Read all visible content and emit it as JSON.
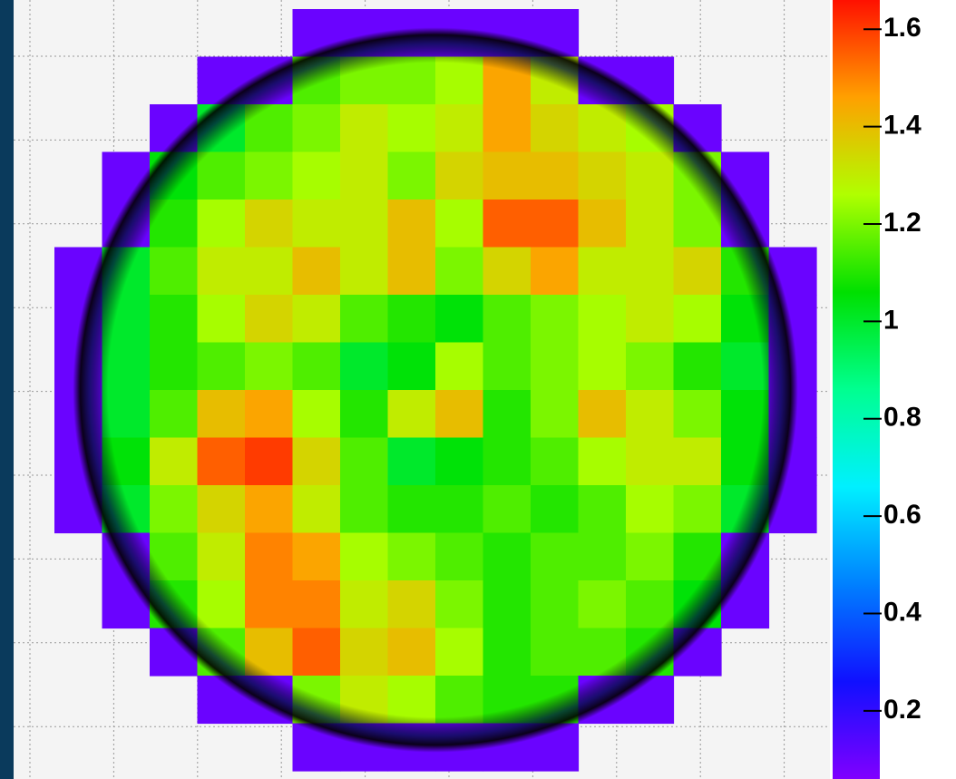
{
  "chart_data": {
    "type": "heatmap",
    "z": [
      [
        null,
        null,
        null,
        null,
        null,
        0.1,
        0.1,
        0.1,
        0.1,
        0.1,
        0.1,
        null,
        null,
        null,
        null,
        null
      ],
      [
        null,
        null,
        null,
        0.1,
        0.1,
        1.15,
        1.2,
        1.2,
        1.25,
        1.45,
        1.3,
        0.1,
        0.1,
        null,
        null,
        null
      ],
      [
        null,
        null,
        0.1,
        1.0,
        1.15,
        1.2,
        1.3,
        1.25,
        1.3,
        1.45,
        1.35,
        1.3,
        1.25,
        0.1,
        null,
        null
      ],
      [
        null,
        0.1,
        1.05,
        1.15,
        1.2,
        1.25,
        1.3,
        1.2,
        1.35,
        1.4,
        1.4,
        1.35,
        1.3,
        1.2,
        0.1,
        null
      ],
      [
        null,
        0.1,
        1.1,
        1.25,
        1.35,
        1.3,
        1.3,
        1.4,
        1.25,
        1.55,
        1.55,
        1.4,
        1.3,
        1.2,
        0.1,
        null
      ],
      [
        0.1,
        1.0,
        1.15,
        1.3,
        1.3,
        1.4,
        1.3,
        1.4,
        1.2,
        1.35,
        1.45,
        1.3,
        1.3,
        1.35,
        1.1,
        0.1
      ],
      [
        0.1,
        1.0,
        1.1,
        1.25,
        1.35,
        1.3,
        1.15,
        1.1,
        1.05,
        1.15,
        1.2,
        1.25,
        1.3,
        1.25,
        1.05,
        0.1
      ],
      [
        0.1,
        1.0,
        1.1,
        1.15,
        1.2,
        1.15,
        1.0,
        1.05,
        1.25,
        1.15,
        1.2,
        1.25,
        1.2,
        1.1,
        1.0,
        0.1
      ],
      [
        0.1,
        1.0,
        1.15,
        1.4,
        1.45,
        1.25,
        1.1,
        1.3,
        1.4,
        1.1,
        1.2,
        1.4,
        1.3,
        1.2,
        1.05,
        0.1
      ],
      [
        0.1,
        1.05,
        1.3,
        1.55,
        1.6,
        1.35,
        1.15,
        1.0,
        1.05,
        1.1,
        1.15,
        1.25,
        1.3,
        1.3,
        1.05,
        0.1
      ],
      [
        0.1,
        1.0,
        1.2,
        1.35,
        1.45,
        1.3,
        1.15,
        1.1,
        1.1,
        1.15,
        1.1,
        1.15,
        1.25,
        1.2,
        1.0,
        0.1
      ],
      [
        null,
        0.1,
        1.15,
        1.3,
        1.5,
        1.45,
        1.25,
        1.2,
        1.15,
        1.1,
        1.15,
        1.15,
        1.2,
        1.1,
        0.1,
        null
      ],
      [
        null,
        0.1,
        1.1,
        1.25,
        1.5,
        1.5,
        1.3,
        1.35,
        1.2,
        1.1,
        1.15,
        1.2,
        1.15,
        1.05,
        0.1,
        null
      ],
      [
        null,
        null,
        0.1,
        1.15,
        1.4,
        1.55,
        1.35,
        1.4,
        1.25,
        1.1,
        1.15,
        1.15,
        1.1,
        0.1,
        null,
        null
      ],
      [
        null,
        null,
        null,
        0.1,
        0.1,
        1.2,
        1.3,
        1.25,
        1.15,
        1.1,
        1.1,
        0.1,
        0.1,
        null,
        null,
        null
      ],
      [
        null,
        null,
        null,
        null,
        null,
        0.1,
        0.1,
        0.1,
        0.1,
        0.1,
        0.1,
        null,
        null,
        null,
        null,
        null
      ]
    ],
    "zlim": [
      0.06,
      1.66
    ],
    "zticks": [
      0.2,
      0.4,
      0.6,
      0.8,
      1,
      1.2,
      1.4,
      1.6
    ],
    "colorscale": [
      "#8000ff",
      "#1010ff",
      "#0080ff",
      "#00f0ff",
      "#00ff90",
      "#00e000",
      "#b0ff00",
      "#ffa000",
      "#ff1000"
    ]
  }
}
